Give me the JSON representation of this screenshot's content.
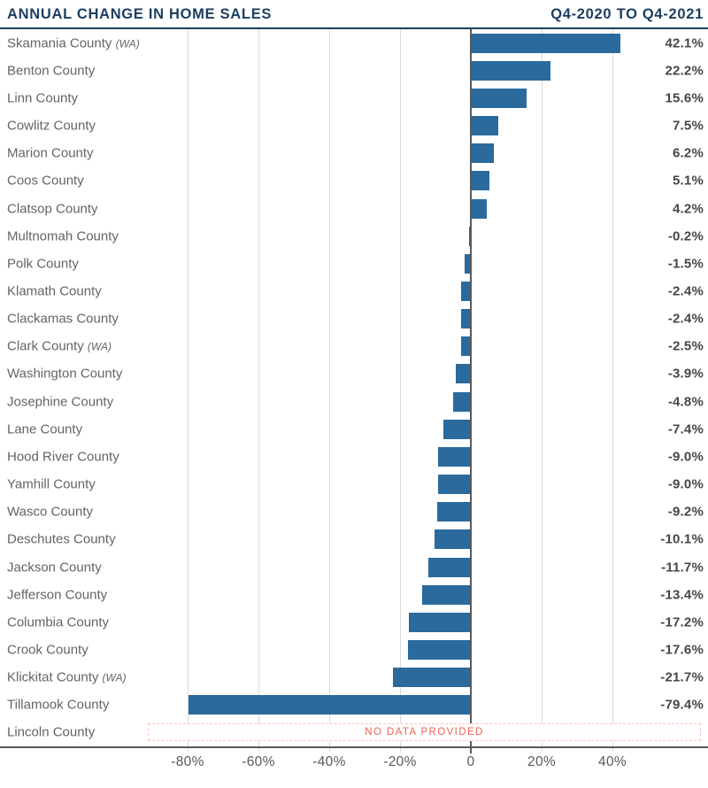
{
  "header": {
    "title": "ANNUAL CHANGE IN HOME SALES",
    "period": "Q4-2020 TO Q4-2021"
  },
  "colors": {
    "accent_navy": "#1c3e5e",
    "bar_blue": "#2a6a9d",
    "no_data_red": "#ee6352",
    "no_data_border": "#f7c3ba",
    "axis_gray": "#58595b",
    "grid_gray": "#d9d9d9",
    "label_gray": "#636466",
    "value_gray": "#454648"
  },
  "chart_data": {
    "type": "bar",
    "orientation": "horizontal",
    "title": "ANNUAL CHANGE IN HOME SALES",
    "subtitle": "Q4-2020 TO Q4-2021",
    "xlabel": "",
    "ylabel": "",
    "unit": "percent",
    "grid": true,
    "xlim": [
      -93,
      66
    ],
    "x_ticks": [
      {
        "value": -80,
        "label": "-80%"
      },
      {
        "value": -60,
        "label": "-60%"
      },
      {
        "value": -40,
        "label": "-40%"
      },
      {
        "value": -20,
        "label": "-20%"
      },
      {
        "value": 0,
        "label": "0"
      },
      {
        "value": 20,
        "label": "20%"
      },
      {
        "value": 40,
        "label": "40%"
      }
    ],
    "no_data_label": "NO DATA PROVIDED",
    "rows": [
      {
        "label": "Skamania County",
        "suffix": "(WA)",
        "value": 42.1,
        "display": "42.1%"
      },
      {
        "label": "Benton County",
        "suffix": "",
        "value": 22.2,
        "display": "22.2%"
      },
      {
        "label": "Linn County",
        "suffix": "",
        "value": 15.6,
        "display": "15.6%"
      },
      {
        "label": "Cowlitz County",
        "suffix": "",
        "value": 7.5,
        "display": "7.5%"
      },
      {
        "label": "Marion County",
        "suffix": "",
        "value": 6.2,
        "display": "6.2%"
      },
      {
        "label": "Coos County",
        "suffix": "",
        "value": 5.1,
        "display": "5.1%"
      },
      {
        "label": "Clatsop County",
        "suffix": "",
        "value": 4.2,
        "display": "4.2%"
      },
      {
        "label": "Multnomah County",
        "suffix": "",
        "value": -0.2,
        "display": "-0.2%"
      },
      {
        "label": "Polk County",
        "suffix": "",
        "value": -1.5,
        "display": "-1.5%"
      },
      {
        "label": "Klamath County",
        "suffix": "",
        "value": -2.4,
        "display": "-2.4%"
      },
      {
        "label": "Clackamas County",
        "suffix": "",
        "value": -2.4,
        "display": "-2.4%"
      },
      {
        "label": "Clark County",
        "suffix": "(WA)",
        "value": -2.5,
        "display": "-2.5%"
      },
      {
        "label": "Washington County",
        "suffix": "",
        "value": -3.9,
        "display": "-3.9%"
      },
      {
        "label": "Josephine County",
        "suffix": "",
        "value": -4.8,
        "display": "-4.8%"
      },
      {
        "label": "Lane County",
        "suffix": "",
        "value": -7.4,
        "display": "-7.4%"
      },
      {
        "label": "Hood River County",
        "suffix": "",
        "value": -9.0,
        "display": "-9.0%"
      },
      {
        "label": "Yamhill County",
        "suffix": "",
        "value": -9.0,
        "display": "-9.0%"
      },
      {
        "label": "Wasco County",
        "suffix": "",
        "value": -9.2,
        "display": "-9.2%"
      },
      {
        "label": "Deschutes County",
        "suffix": "",
        "value": -10.1,
        "display": "-10.1%"
      },
      {
        "label": "Jackson County",
        "suffix": "",
        "value": -11.7,
        "display": "-11.7%"
      },
      {
        "label": "Jefferson County",
        "suffix": "",
        "value": -13.4,
        "display": "-13.4%"
      },
      {
        "label": "Columbia County",
        "suffix": "",
        "value": -17.2,
        "display": "-17.2%"
      },
      {
        "label": "Crook County",
        "suffix": "",
        "value": -17.6,
        "display": "-17.6%"
      },
      {
        "label": "Klickitat County",
        "suffix": "(WA)",
        "value": -21.7,
        "display": "-21.7%"
      },
      {
        "label": "Tillamook County",
        "suffix": "",
        "value": -79.4,
        "display": "-79.4%"
      },
      {
        "label": "Lincoln County",
        "suffix": "",
        "value": null,
        "display": null,
        "no_data": true
      }
    ]
  }
}
